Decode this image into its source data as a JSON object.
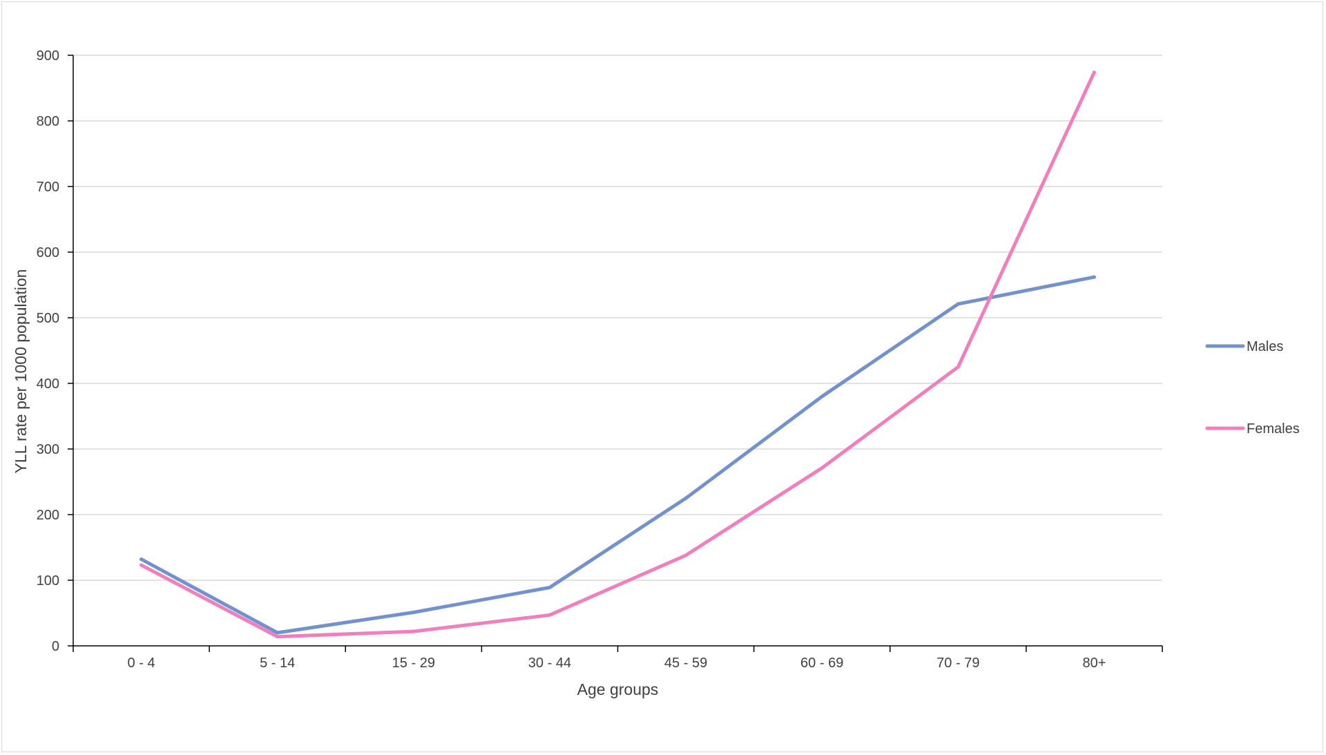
{
  "chart_data": {
    "type": "line",
    "categories": [
      "0 - 4",
      "5 - 14",
      "15 - 29",
      "30 - 44",
      "45 - 59",
      "60 - 69",
      "70 - 79",
      "80+"
    ],
    "series": [
      {
        "name": "Males",
        "color": "#7391cc",
        "values": [
          132,
          20,
          51,
          89,
          225,
          380,
          521,
          562
        ]
      },
      {
        "name": "Females",
        "color": "#f07fbe",
        "values": [
          123,
          14,
          22,
          47,
          138,
          271,
          425,
          874
        ]
      }
    ],
    "title": "",
    "xlabel": "Age groups",
    "ylabel": "YLL rate per 1000 population",
    "ylim": [
      0,
      900
    ],
    "yticks": [
      0,
      100,
      200,
      300,
      400,
      500,
      600,
      700,
      800,
      900
    ],
    "grid": true,
    "legend_position": "right"
  }
}
